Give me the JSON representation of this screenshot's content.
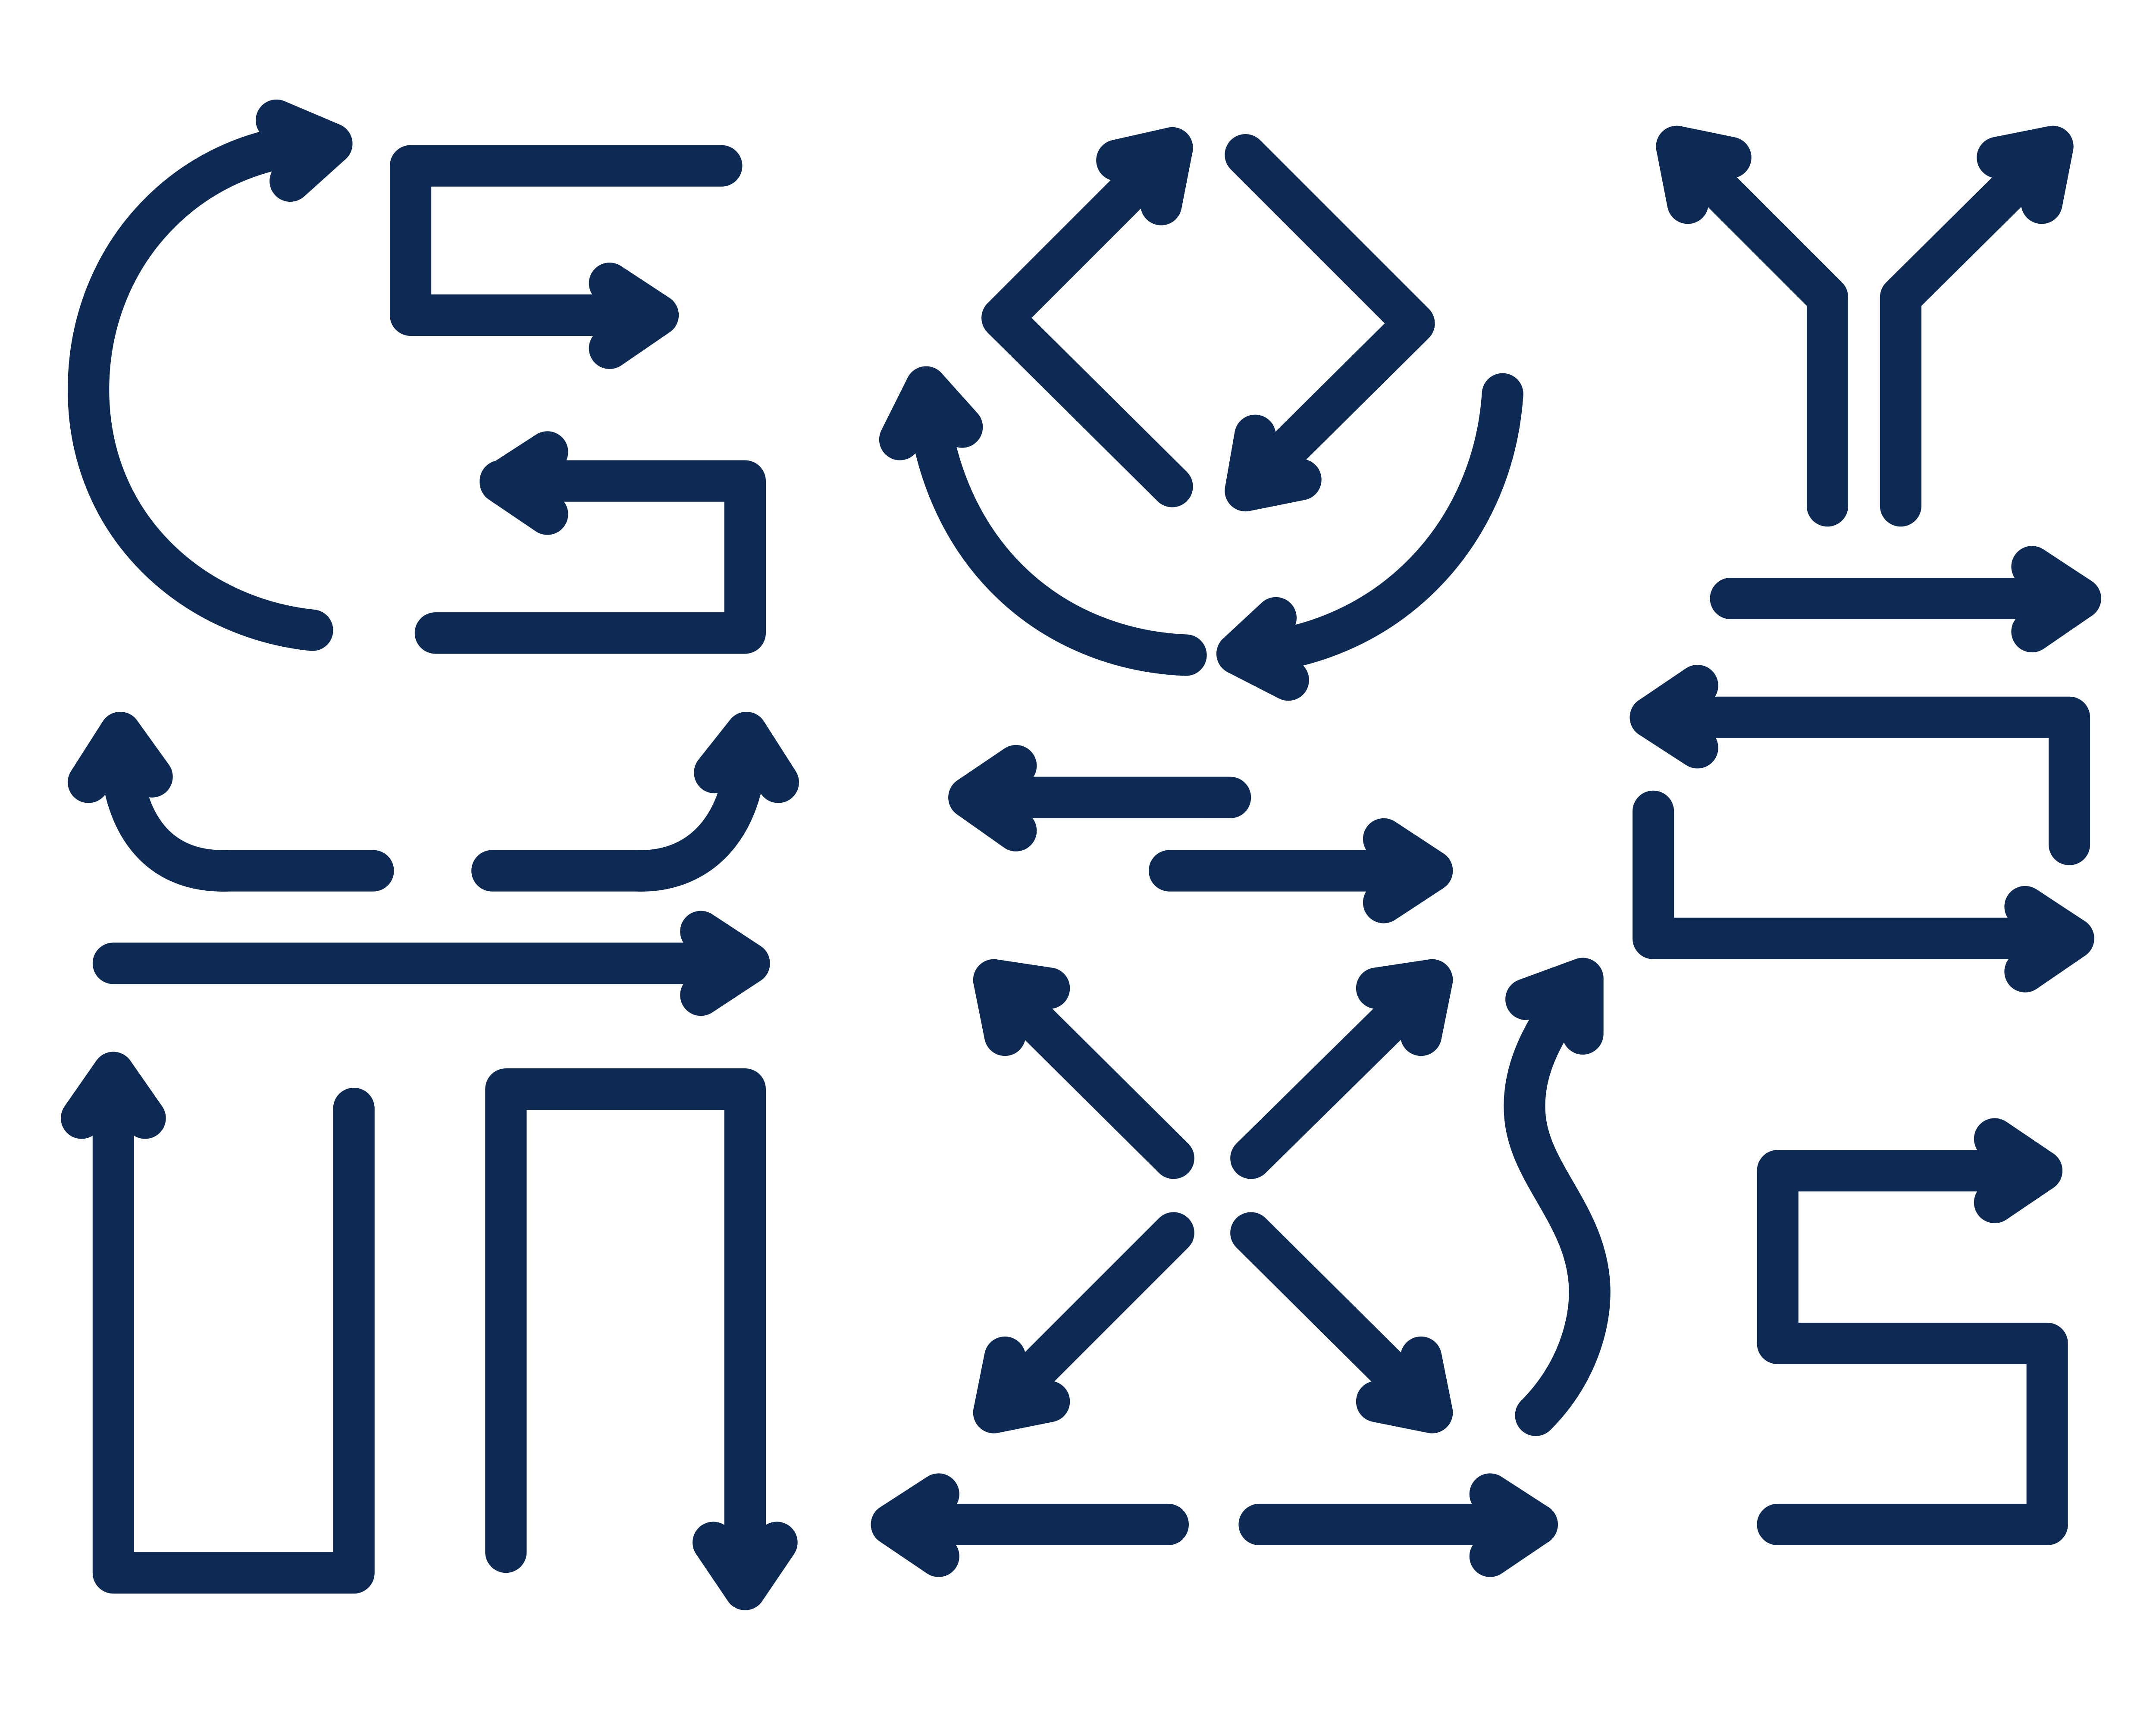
{
  "title": "",
  "colors": {
    "background": "#ffffff",
    "stroke": "#0d2a54"
  },
  "arrows": [
    {
      "name": "curved-arc-arrow-top-right",
      "icon": "curved-arrow-icon",
      "direction": "clockwise"
    },
    {
      "name": "elbow-arrow-right",
      "icon": "elbow-arrow-icon",
      "direction": "right"
    },
    {
      "name": "elbow-arrow-left",
      "icon": "elbow-arrow-icon",
      "direction": "left"
    },
    {
      "name": "diamond-arrow-up-right",
      "icon": "diagonal-arrow-icon",
      "direction": "up-right"
    },
    {
      "name": "diamond-arrow-down-left",
      "icon": "diagonal-arrow-icon",
      "direction": "down-left"
    },
    {
      "name": "curved-arrow-up-left",
      "icon": "curved-arrow-icon",
      "direction": "up-left"
    },
    {
      "name": "curved-arrow-bottom-left",
      "icon": "curved-arrow-icon",
      "direction": "left"
    },
    {
      "name": "fork-arrow-left",
      "icon": "fork-arrow-icon",
      "direction": "up-left"
    },
    {
      "name": "fork-arrow-right",
      "icon": "fork-arrow-icon",
      "direction": "up-right"
    },
    {
      "name": "straight-arrow-right-top",
      "icon": "arrow-right-icon",
      "direction": "right"
    },
    {
      "name": "u-turn-arrow-left",
      "icon": "u-turn-arrow-icon",
      "direction": "left"
    },
    {
      "name": "u-turn-arrow-right",
      "icon": "u-turn-arrow-icon",
      "direction": "right"
    },
    {
      "name": "hook-arrow-up-left",
      "icon": "hook-arrow-icon",
      "direction": "up"
    },
    {
      "name": "hook-arrow-up-right",
      "icon": "hook-arrow-icon",
      "direction": "up"
    },
    {
      "name": "long-arrow-right",
      "icon": "arrow-right-icon",
      "direction": "right"
    },
    {
      "name": "arrow-left-middle",
      "icon": "arrow-left-icon",
      "direction": "left"
    },
    {
      "name": "arrow-right-middle",
      "icon": "arrow-right-icon",
      "direction": "right"
    },
    {
      "name": "burst-arrow-up-left",
      "icon": "diagonal-arrow-icon",
      "direction": "up-left"
    },
    {
      "name": "burst-arrow-up-right",
      "icon": "diagonal-arrow-icon",
      "direction": "up-right"
    },
    {
      "name": "burst-arrow-down-left",
      "icon": "diagonal-arrow-icon",
      "direction": "down-left"
    },
    {
      "name": "burst-arrow-down-right",
      "icon": "diagonal-arrow-icon",
      "direction": "down-right"
    },
    {
      "name": "s-curve-arrow-up",
      "icon": "wavy-arrow-icon",
      "direction": "up"
    },
    {
      "name": "u-arrow-up",
      "icon": "u-turn-arrow-icon",
      "direction": "up"
    },
    {
      "name": "n-arrow-down",
      "icon": "n-turn-arrow-icon",
      "direction": "down"
    },
    {
      "name": "arrow-left-bottom",
      "icon": "arrow-left-icon",
      "direction": "left"
    },
    {
      "name": "arrow-right-bottom",
      "icon": "arrow-right-icon",
      "direction": "right"
    },
    {
      "name": "s-path-arrow-right",
      "icon": "s-path-arrow-icon",
      "direction": "right"
    }
  ]
}
